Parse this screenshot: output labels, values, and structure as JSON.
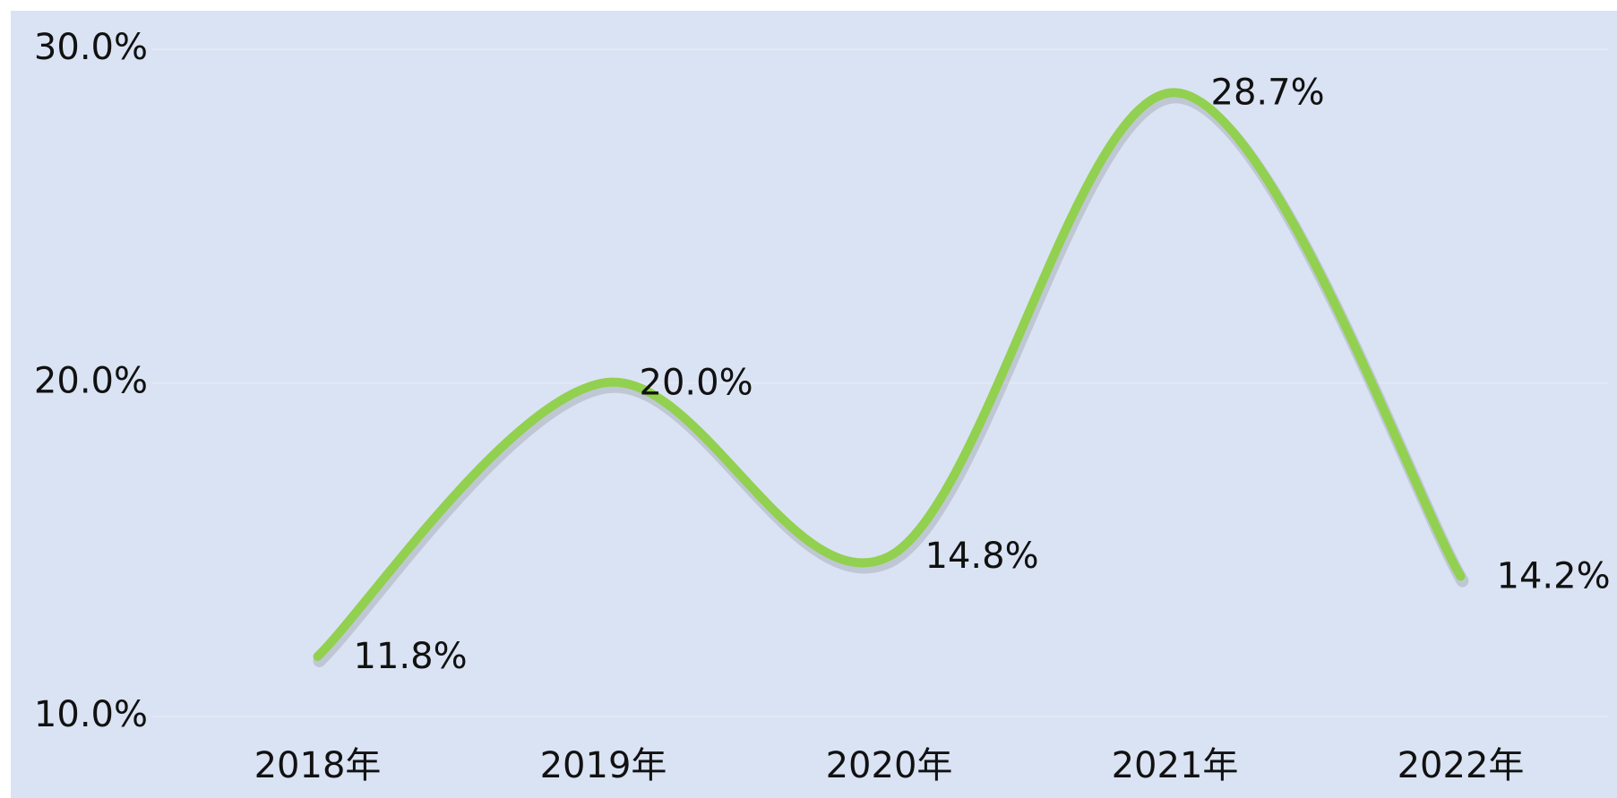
{
  "chart_data": {
    "type": "line",
    "categories": [
      "2018年",
      "2019年",
      "2020年",
      "2021年",
      "2022年"
    ],
    "values": [
      11.8,
      20.0,
      14.8,
      28.7,
      14.2
    ],
    "value_labels": [
      "11.8%",
      "20.0%",
      "14.8%",
      "28.7%",
      "14.2%"
    ],
    "color": "#92d050",
    "ylim": [
      10,
      30
    ],
    "yticks": [
      {
        "value": 10,
        "label": "10.0%"
      },
      {
        "value": 20,
        "label": "20.0%"
      },
      {
        "value": 30,
        "label": "30.0%"
      }
    ],
    "grid": true,
    "smooth": true
  }
}
